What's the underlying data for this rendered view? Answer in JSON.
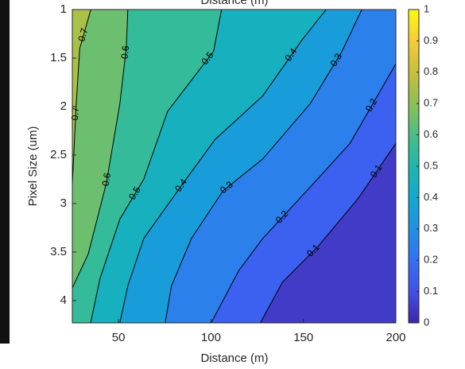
{
  "chart_data": {
    "type": "contour",
    "title": "Distance (m)",
    "xlabel": "Distance (m)",
    "ylabel": "Pixel Size (um)",
    "xlim": [
      25,
      200
    ],
    "xticks": [
      50,
      100,
      150,
      200
    ],
    "ylim": [
      1,
      4.23
    ],
    "yticks": [
      1,
      1.5,
      2,
      2.5,
      3,
      3.5,
      4
    ],
    "y_reversed": true,
    "clim": [
      0,
      1
    ],
    "cticks": [
      0,
      0.1,
      0.2,
      0.3,
      0.4,
      0.5,
      0.6,
      0.7,
      0.8,
      0.9,
      1
    ],
    "colormap": [
      "#3e26a8",
      "#4450e8",
      "#3470f5",
      "#2190e3",
      "#12a8d0",
      "#1cb8ab",
      "#4bbd86",
      "#8cc055",
      "#c9bf3a",
      "#f6cb38",
      "#f9fb0e"
    ],
    "line_color": "#000000",
    "series": [
      {
        "level": 0.7,
        "x": [
          35,
          29,
          27,
          25
        ],
        "y": [
          1,
          1.4,
          2,
          2.8
        ]
      },
      {
        "level": 0.6,
        "x": [
          55,
          54.2,
          50.7,
          43.4,
          33.6,
          25
        ],
        "y": [
          1,
          1.39,
          1.97,
          2.79,
          3.52,
          3.87
        ]
      },
      {
        "level": 0.5,
        "x": [
          105.7,
          101.4,
          76.5,
          63.6,
          50.7,
          40,
          34.9
        ],
        "y": [
          1,
          1.43,
          2.05,
          2.75,
          3.16,
          3.77,
          4.23
        ]
      },
      {
        "level": 0.4,
        "x": [
          162.3,
          149.4,
          128,
          102.2,
          85,
          63.6,
          55,
          50.7
        ],
        "y": [
          1,
          1.31,
          1.89,
          2.34,
          2.79,
          3.36,
          3.85,
          4.23
        ]
      },
      {
        "level": 0.3,
        "x": [
          181.6,
          170.9,
          153.7,
          128,
          106.5,
          89.4,
          78.6,
          75.2
        ],
        "y": [
          1,
          1.43,
          1.97,
          2.54,
          2.87,
          3.36,
          3.85,
          4.23
        ]
      },
      {
        "level": 0.2,
        "x": [
          200,
          175.2,
          153.7,
          128,
          115.1,
          100.1
        ],
        "y": [
          1.56,
          2.38,
          2.83,
          3.36,
          3.69,
          4.23
        ]
      },
      {
        "level": 0.1,
        "x": [
          200,
          179.5,
          158,
          138.7,
          126.7
        ],
        "y": [
          2.38,
          2.95,
          3.44,
          3.81,
          4.23
        ]
      }
    ]
  }
}
